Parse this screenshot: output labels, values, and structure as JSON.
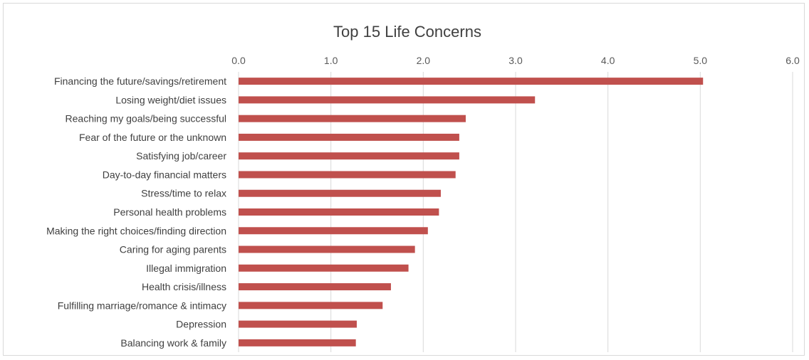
{
  "chart_data": {
    "type": "bar",
    "orientation": "horizontal",
    "title": "Top 15 Life Concerns",
    "xlabel": "",
    "ylabel": "",
    "xlim": [
      0,
      6
    ],
    "ticks": [
      "0.0",
      "1.0",
      "2.0",
      "3.0",
      "4.0",
      "5.0",
      "6.0"
    ],
    "grid": true,
    "bar_color": "#c0504d",
    "categories": [
      "Financing the future/savings/retirement",
      "Losing weight/diet issues",
      "Reaching my goals/being successful",
      "Fear of the future or the unknown",
      "Satisfying job/career",
      "Day-to-day financial matters",
      "Stress/time to relax",
      "Personal health problems",
      "Making the right choices/finding direction",
      "Caring for aging parents",
      "Illegal immigration",
      "Health crisis/illness",
      "Fulfilling marriage/romance & intimacy",
      "Depression",
      "Balancing work & family"
    ],
    "values": [
      5.03,
      3.21,
      2.46,
      2.39,
      2.39,
      2.35,
      2.19,
      2.17,
      2.05,
      1.91,
      1.84,
      1.65,
      1.56,
      1.28,
      1.27
    ]
  }
}
